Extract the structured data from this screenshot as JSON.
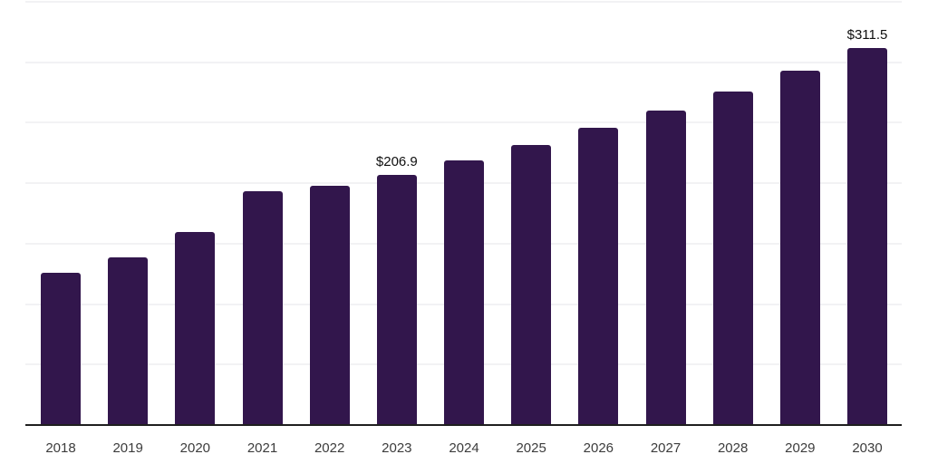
{
  "chart_data": {
    "type": "bar",
    "categories": [
      "2018",
      "2019",
      "2020",
      "2021",
      "2022",
      "2023",
      "2024",
      "2025",
      "2026",
      "2027",
      "2028",
      "2029",
      "2030"
    ],
    "values": [
      126.0,
      138.7,
      159.7,
      193.3,
      198.0,
      206.9,
      218.7,
      231.3,
      245.6,
      260.4,
      276.1,
      293.3,
      311.5
    ],
    "data_labels": [
      {
        "category": "2023",
        "text": "$206.9"
      },
      {
        "category": "2030",
        "text": "$311.5"
      }
    ],
    "ylim": [
      0,
      350
    ],
    "gridline_step": 50,
    "grid": "horizontal",
    "legend": "none",
    "colors": {
      "bar": "#32164c",
      "grid": "#f2f2f4",
      "axis": "#1f1f1f",
      "tick_label": "#3c3c3c",
      "data_label": "#0f0f0f",
      "background": "#ffffff"
    }
  }
}
